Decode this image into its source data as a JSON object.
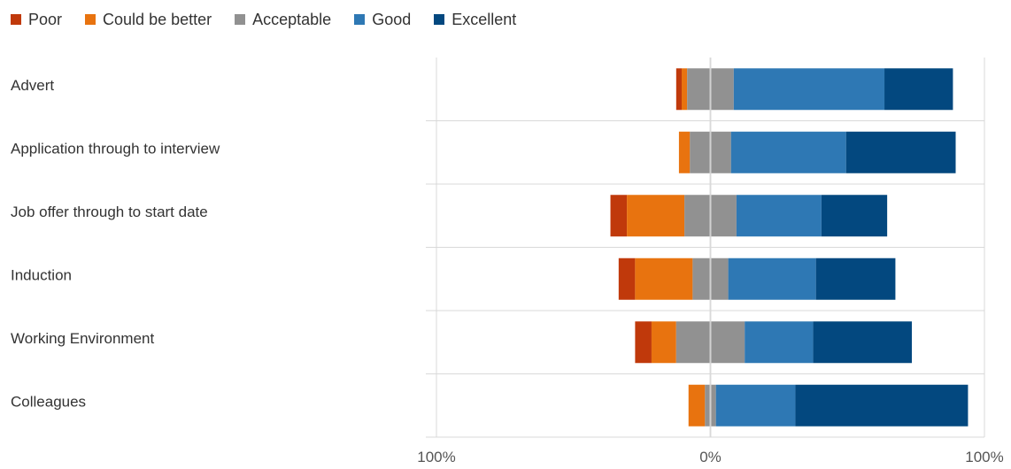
{
  "chart_data": {
    "type": "bar",
    "stacked": true,
    "diverging": true,
    "orientation": "horizontal",
    "title": "",
    "xlabel": "",
    "ylabel": "",
    "xlim": [
      -100,
      100
    ],
    "x_tick_labels": [
      "100%",
      "0%",
      "100%"
    ],
    "grid": true,
    "legend_position": "top-left",
    "categories": [
      "Advert",
      "Application through to interview",
      "Job offer through to start date",
      "Induction",
      "Working Environment",
      "Colleagues"
    ],
    "series": [
      {
        "name": "Poor",
        "color": "#c0390b",
        "side": "negative",
        "values": [
          2,
          0,
          6,
          6,
          6,
          0
        ]
      },
      {
        "name": "Could be better",
        "color": "#e8730f",
        "side": "negative",
        "values": [
          2,
          4,
          21,
          21,
          9,
          6
        ]
      },
      {
        "name": "Acceptable",
        "color": "#919191",
        "values": [
          17,
          15,
          19,
          13,
          25,
          4
        ]
      },
      {
        "name": "Good",
        "color": "#2e78b4",
        "side": "positive",
        "values": [
          55,
          42,
          31,
          32,
          25,
          29
        ]
      },
      {
        "name": "Excellent",
        "color": "#03487f",
        "side": "positive",
        "values": [
          25,
          40,
          24,
          29,
          36,
          63
        ]
      }
    ]
  }
}
